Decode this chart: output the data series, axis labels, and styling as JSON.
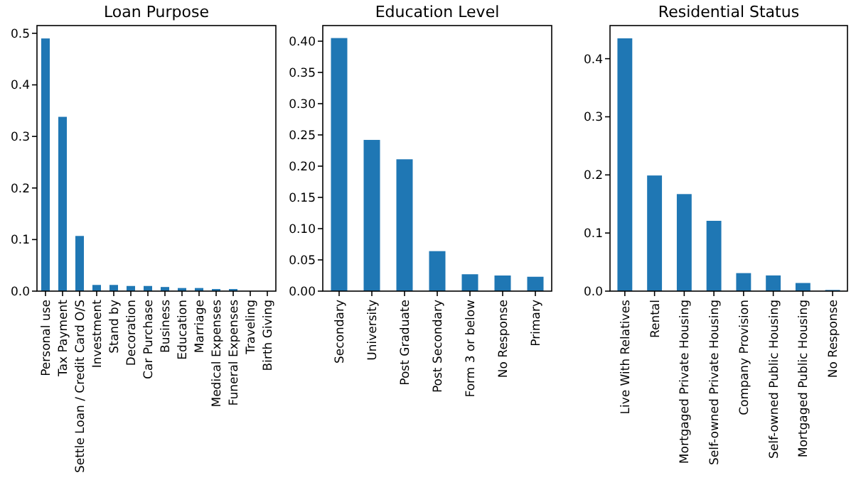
{
  "chart_data": [
    {
      "type": "bar",
      "title": "Loan Purpose",
      "categories": [
        "Personal use",
        "Tax Payment",
        "Settle Loan / Credit Card O/S",
        "Investment",
        "Stand by",
        "Decoration",
        "Car Purchase",
        "Business",
        "Education",
        "Marriage",
        "Medical Expenses",
        "Funeral Expenses",
        "Traveling",
        "Birth Giving"
      ],
      "values": [
        0.49,
        0.338,
        0.107,
        0.012,
        0.012,
        0.01,
        0.01,
        0.008,
        0.006,
        0.006,
        0.004,
        0.004,
        null,
        null
      ],
      "color": "#1f77b4",
      "ylim": [
        0,
        0.515
      ],
      "yticks": [
        {
          "value": 0,
          "label": "0.0"
        },
        0.1,
        0.2,
        0.3,
        0.4,
        0.5
      ]
    },
    {
      "type": "bar",
      "title": "Education Level",
      "categories": [
        "Secondary",
        "University",
        "Post Graduate",
        "Post Secondary",
        "Form 3 or below",
        "No Response",
        "Primary"
      ],
      "values": [
        0.405,
        0.242,
        0.211,
        0.064,
        0.027,
        0.025,
        0.023
      ],
      "color": "#1f77b4",
      "ylim": [
        0,
        0.425
      ],
      "yticks": [
        {
          "value": 0,
          "label": "0.00"
        },
        {
          "value": 0.05,
          "label": "0.05"
        },
        {
          "value": 0.1,
          "label": "0.10"
        },
        {
          "value": 0.15,
          "label": "0.15"
        },
        {
          "value": 0.2,
          "label": "0.20"
        },
        {
          "value": 0.25,
          "label": "0.25"
        },
        {
          "value": 0.3,
          "label": "0.30"
        },
        {
          "value": 0.35,
          "label": "0.35"
        },
        {
          "value": 0.4,
          "label": "0.40"
        }
      ]
    },
    {
      "type": "bar",
      "title": "Residential Status",
      "categories": [
        "Live With Relatives",
        "Rental",
        "Mortgaged Private Housing",
        "Self-owned Private Housing",
        "Company Provision",
        "Self-owned Public Housing",
        "Mortgaged Public Housing",
        "No Response"
      ],
      "values": [
        0.435,
        0.199,
        0.167,
        0.121,
        0.031,
        0.027,
        0.014,
        0.002
      ],
      "color": "#1f77b4",
      "ylim": [
        0,
        0.457
      ],
      "yticks": [
        {
          "value": 0,
          "label": "0.0"
        },
        0.1,
        0.2,
        0.3,
        0.4
      ]
    }
  ]
}
